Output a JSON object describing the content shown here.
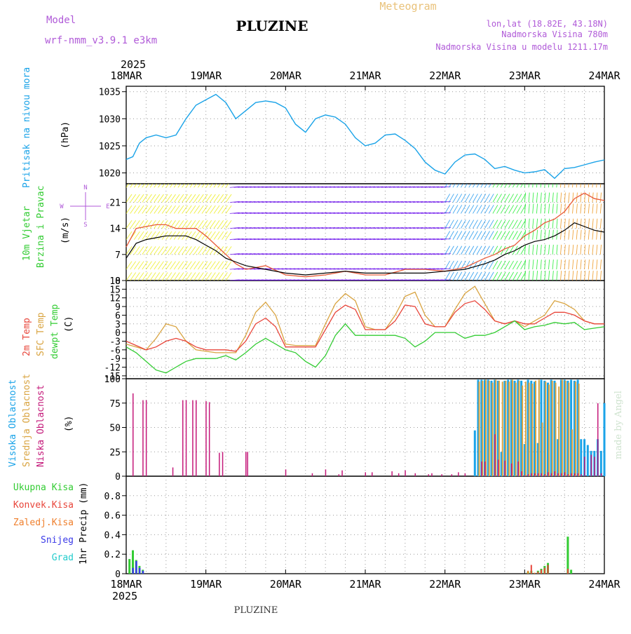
{
  "header": {
    "model_label": "Model",
    "model_name": "wrf-nmm_v3.9.1 e3km",
    "title": "PLUZINE",
    "meteogram_label": "Meteogram",
    "lonlat": "lon,lat (18.82E, 43.18N)",
    "elevation": "Nadmorska Visina 780m",
    "model_elevation": "Nadmorska Visina u modelu 1211.17m",
    "footer_title": "PLUZINE",
    "watermark": "made by Angel"
  },
  "time_axis": {
    "year": "2025",
    "labels": [
      "18MAR",
      "19MAR",
      "20MAR",
      "21MAR",
      "22MAR",
      "23MAR",
      "24MAR"
    ],
    "range_hours": [
      0,
      144
    ]
  },
  "colors": {
    "pressure": "#1aa3e8",
    "temp2m": "#e8453a",
    "sfc": "#d9a441",
    "dewpt": "#33cc33",
    "low_cloud": "#c4197a",
    "mid_cloud": "#d9a441",
    "high_cloud": "#1aa3e8",
    "total_precip": "#33cc33",
    "conv_precip": "#e8453a",
    "frozen_precip": "#ef7f2c",
    "snow": "#3a3ae8",
    "hail": "#22cccc",
    "model_text": "#b05ad8"
  },
  "chart_data": [
    {
      "type": "line",
      "id": "pressure",
      "ylabel": "Pritisak na nivou mora",
      "unit": "(hPa)",
      "ylim": [
        1018,
        1036
      ],
      "yticks": [
        1020,
        1025,
        1030,
        1035
      ],
      "series": [
        {
          "name": "Pressure",
          "x": [
            0,
            2,
            4,
            6,
            9,
            12,
            15,
            18,
            21,
            24,
            27,
            30,
            33,
            36,
            39,
            42,
            45,
            48,
            51,
            54,
            57,
            60,
            63,
            66,
            69,
            72,
            75,
            78,
            81,
            84,
            87,
            90,
            93,
            96,
            99,
            102,
            105,
            108,
            111,
            114,
            117,
            120,
            123,
            126,
            129,
            132,
            135,
            138,
            141,
            144
          ],
          "values": [
            1022.5,
            1023,
            1025.5,
            1026.5,
            1027,
            1026.5,
            1027,
            1030,
            1032.5,
            1033.5,
            1034.5,
            1033,
            1030,
            1031.5,
            1033,
            1033.3,
            1033,
            1032,
            1029,
            1027.5,
            1030,
            1030.7,
            1030.3,
            1029,
            1026.5,
            1025,
            1025.5,
            1027,
            1027.2,
            1026,
            1024.5,
            1022,
            1020.5,
            1019.8,
            1022,
            1023.3,
            1023.5,
            1022.5,
            1020.8,
            1021.2,
            1020.5,
            1020,
            1020.2,
            1020.6,
            1019,
            1020.8,
            1021,
            1021.5,
            1022,
            1022.4
          ]
        }
      ]
    },
    {
      "type": "line",
      "id": "wind",
      "ylabel": "10m Vjetar",
      "ylabel2": "Brzina i Pravac",
      "unit": "(m/s)",
      "ylim": [
        0,
        26
      ],
      "yticks": [
        0,
        7,
        14,
        21
      ],
      "compass": [
        "N",
        "W",
        "E",
        "S"
      ],
      "series": [
        {
          "name": "Wind speed",
          "x": [
            0,
            3,
            6,
            9,
            12,
            15,
            18,
            21,
            24,
            27,
            30,
            33,
            36,
            42,
            48,
            54,
            60,
            66,
            72,
            78,
            84,
            90,
            96,
            102,
            108,
            111,
            114,
            117,
            120,
            123,
            126,
            129,
            132,
            135,
            138,
            141,
            144
          ],
          "values": [
            6,
            10,
            11,
            11.5,
            12,
            12,
            12,
            11,
            9.5,
            8,
            6,
            5,
            4,
            3,
            2,
            1.5,
            2,
            2.5,
            2,
            2,
            2,
            2,
            2.5,
            3,
            4.5,
            5.5,
            7,
            8,
            9.5,
            10.5,
            11,
            12,
            13.5,
            15.5,
            14.5,
            13.5,
            13
          ]
        },
        {
          "name": "Wind gust",
          "x": [
            0,
            3,
            6,
            9,
            12,
            15,
            18,
            21,
            24,
            27,
            30,
            33,
            36,
            42,
            48,
            54,
            60,
            66,
            72,
            78,
            84,
            90,
            96,
            102,
            108,
            111,
            114,
            117,
            120,
            123,
            126,
            129,
            132,
            135,
            138,
            141,
            144
          ],
          "values": [
            9,
            14,
            14.5,
            15,
            15,
            14,
            14,
            14,
            12,
            9.5,
            7,
            4.5,
            3,
            4,
            1.5,
            1,
            1.5,
            2.5,
            1.5,
            1.5,
            3,
            3,
            2.5,
            3.5,
            6,
            7,
            8.5,
            9.5,
            12,
            13.5,
            15.5,
            16.5,
            18.5,
            22,
            23.5,
            22,
            21.5
          ]
        }
      ]
    },
    {
      "type": "line",
      "id": "temperature",
      "ylabel": "2m Temp",
      "ylabel2": "SFC Temp",
      "ylabel3": "dewpt Temp",
      "unit": "(C)",
      "ylim": [
        -16,
        18
      ],
      "yticks": [
        18,
        15,
        12,
        9,
        6,
        3,
        0,
        -3,
        -6,
        -9,
        -12,
        -15
      ],
      "series": [
        {
          "name": "2m Temp",
          "x": [
            0,
            3,
            6,
            9,
            12,
            15,
            18,
            21,
            24,
            27,
            30,
            33,
            36,
            39,
            42,
            45,
            48,
            51,
            54,
            57,
            60,
            63,
            66,
            69,
            72,
            75,
            78,
            81,
            84,
            87,
            90,
            93,
            96,
            99,
            102,
            105,
            108,
            111,
            114,
            117,
            120,
            123,
            126,
            129,
            132,
            135,
            138,
            141,
            144
          ],
          "values": [
            -3,
            -4.5,
            -6,
            -5,
            -3,
            -2,
            -3,
            -5,
            -6,
            -6,
            -6,
            -6.5,
            -3,
            3,
            5,
            2,
            -5,
            -5,
            -5,
            -5,
            1,
            7,
            9.5,
            8,
            1,
            1,
            1,
            4,
            9.5,
            9,
            3,
            2,
            2,
            7,
            10,
            11,
            8,
            4,
            3,
            4,
            3,
            3,
            5,
            7,
            7,
            6,
            4,
            3,
            3
          ]
        },
        {
          "name": "SFC Temp",
          "x": [
            0,
            3,
            6,
            9,
            12,
            15,
            18,
            21,
            24,
            27,
            30,
            33,
            36,
            39,
            42,
            45,
            48,
            51,
            54,
            57,
            60,
            63,
            66,
            69,
            72,
            75,
            78,
            81,
            84,
            87,
            90,
            93,
            96,
            99,
            102,
            105,
            108,
            111,
            114,
            117,
            120,
            123,
            126,
            129,
            132,
            135,
            138,
            141,
            144
          ],
          "values": [
            -4,
            -5,
            -6,
            -2,
            3,
            2,
            -3,
            -6,
            -6.5,
            -7,
            -7,
            -7,
            -1,
            7,
            10.5,
            6,
            -4,
            -4.5,
            -4.5,
            -4.5,
            3,
            10,
            13.5,
            11,
            2,
            1,
            1,
            6,
            12.5,
            14,
            6,
            2,
            2,
            8,
            13.5,
            16,
            10,
            4,
            3,
            4,
            2,
            4,
            6,
            11,
            10,
            8,
            4,
            3,
            3
          ]
        },
        {
          "name": "Dewpt Temp",
          "x": [
            0,
            3,
            6,
            9,
            12,
            15,
            18,
            21,
            24,
            27,
            30,
            33,
            36,
            39,
            42,
            45,
            48,
            51,
            54,
            57,
            60,
            63,
            66,
            69,
            72,
            75,
            78,
            81,
            84,
            87,
            90,
            93,
            96,
            99,
            102,
            105,
            108,
            111,
            114,
            117,
            120,
            123,
            126,
            129,
            132,
            135,
            138,
            141,
            144
          ],
          "values": [
            -5,
            -7,
            -10,
            -13,
            -14,
            -12,
            -10,
            -9,
            -9,
            -9,
            -8,
            -9.5,
            -7,
            -4,
            -2,
            -4,
            -6,
            -7,
            -10,
            -12,
            -8,
            -1,
            3,
            -1,
            -1,
            -1,
            -1,
            -1,
            -2,
            -5,
            -3,
            0,
            0,
            0,
            -2,
            -1,
            -1,
            0,
            2,
            4,
            1,
            2,
            2.5,
            3.5,
            3,
            3.5,
            1,
            1.5,
            2
          ]
        }
      ]
    },
    {
      "type": "bar",
      "id": "clouds",
      "ylabel": "Visoka Oblacnost",
      "ylabel2": "Srednja Oblacnost",
      "ylabel3": "Niska Oblacnost",
      "unit": "(%)",
      "ylim": [
        0,
        100
      ],
      "yticks": [
        0,
        25,
        50,
        75,
        100
      ],
      "low": {
        "x": [
          2,
          5,
          6,
          14,
          17,
          18,
          20,
          21,
          24,
          25,
          28,
          29,
          36,
          36.5,
          48,
          56,
          60,
          64,
          65,
          72,
          74,
          80,
          82,
          84,
          87,
          91,
          92,
          95,
          98,
          100,
          102,
          107,
          108,
          111,
          112,
          114,
          116,
          118,
          119,
          120,
          121,
          122,
          123,
          124,
          125,
          126,
          127,
          128,
          129,
          130,
          131,
          132,
          133,
          134,
          135,
          136,
          137,
          138,
          140,
          141,
          142,
          143
        ],
        "values": [
          85,
          78,
          78,
          9,
          78,
          78,
          78,
          78,
          77,
          76,
          24,
          25,
          25,
          25,
          7,
          3,
          7,
          2,
          6,
          4,
          4,
          5,
          3,
          6,
          3,
          2,
          3,
          2,
          2,
          4,
          3,
          15,
          15,
          43,
          17,
          16,
          13,
          15,
          5,
          1,
          2,
          3,
          3,
          3,
          3,
          2,
          4,
          3,
          5,
          3,
          3,
          4,
          2,
          3,
          3,
          3,
          2,
          20,
          22,
          20,
          75,
          3
        ]
      },
      "mid": {
        "x": [
          106,
          107,
          108,
          109,
          110,
          111,
          112,
          113,
          114,
          115,
          116,
          117,
          118,
          119,
          120,
          121,
          122,
          123,
          124,
          125,
          126,
          127,
          128,
          129,
          130,
          131,
          132,
          133,
          134,
          135,
          136
        ],
        "values": [
          97,
          98,
          99,
          98,
          96,
          99,
          98,
          97,
          98,
          97,
          99,
          96,
          98,
          93,
          97,
          96,
          95,
          98,
          99,
          55,
          97,
          94,
          98,
          96,
          92,
          99,
          98,
          96,
          48,
          97,
          95
        ]
      },
      "high": {
        "x": [
          105,
          106,
          107,
          108,
          109,
          110,
          111,
          112,
          113,
          114,
          115,
          116,
          117,
          118,
          119,
          120,
          121,
          122,
          123,
          124,
          125,
          126,
          127,
          128,
          129,
          130,
          131,
          132,
          133,
          134,
          135,
          136,
          137,
          138,
          139,
          140,
          141,
          142,
          143,
          144
        ],
        "values": [
          47,
          99,
          99,
          99,
          99,
          98,
          99,
          98,
          25,
          98,
          99,
          99,
          98,
          99,
          98,
          33,
          99,
          98,
          97,
          34,
          99,
          98,
          96,
          99,
          98,
          38,
          99,
          99,
          98,
          99,
          98,
          99,
          38,
          38,
          32,
          26,
          26,
          38,
          26,
          75
        ]
      }
    },
    {
      "type": "bar",
      "id": "precipitation",
      "ylabel": "1hr Precip (mm)",
      "legend": [
        "Ukupna Kisa",
        "Konvek.Kisa",
        "Zaledj.Kisa",
        "Snijeg",
        "Grad"
      ],
      "ylim": [
        0,
        1.0
      ],
      "yticks": [
        0,
        0.2,
        0.4,
        0.6,
        0.8
      ],
      "total": {
        "x": [
          1,
          2,
          3,
          4,
          5,
          121,
          122,
          124,
          125,
          126,
          127,
          133,
          134
        ],
        "values": [
          0.15,
          0.24,
          0.14,
          0.08,
          0.04,
          0.02,
          0.03,
          0.03,
          0.05,
          0.08,
          0.11,
          0.38,
          0.04
        ]
      },
      "conv": {
        "x": [
          122,
          124,
          125,
          126,
          127,
          133
        ],
        "values": [
          0.09,
          0.02,
          0.04,
          0.06,
          0.09,
          0.05
        ]
      },
      "snow": {
        "x": [
          2,
          3,
          4,
          5
        ],
        "values": [
          0.06,
          0.13,
          0.06,
          0.03
        ]
      },
      "frozen": {
        "x": [
          121,
          123
        ],
        "values": [
          0.03,
          0.01
        ]
      }
    }
  ]
}
